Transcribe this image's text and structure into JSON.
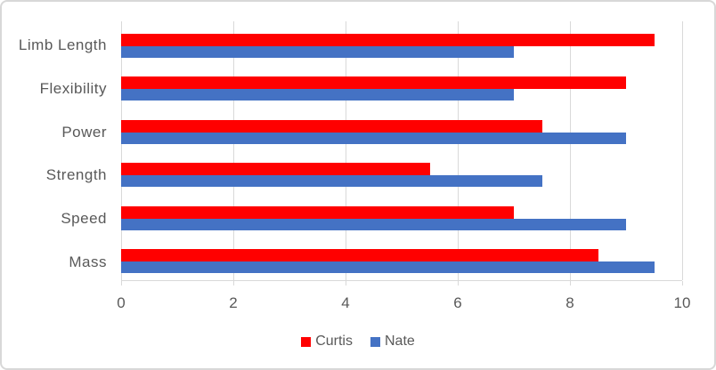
{
  "chart_data": {
    "type": "bar",
    "orientation": "horizontal",
    "categories": [
      "Limb Length",
      "Flexibility",
      "Power",
      "Strength",
      "Speed",
      "Mass"
    ],
    "series": [
      {
        "name": "Curtis",
        "color": "#ff0000",
        "values": [
          9.5,
          9,
          7.5,
          5.5,
          7,
          8.5
        ]
      },
      {
        "name": "Nate",
        "color": "#4472c4",
        "values": [
          7,
          7,
          9,
          7.5,
          9,
          9.5
        ]
      }
    ],
    "x_ticks": [
      "0",
      "2",
      "4",
      "6",
      "8",
      "10"
    ],
    "xlim": [
      0,
      10
    ],
    "grid": "vertical-only",
    "legend_position": "bottom-center"
  },
  "colors": {
    "gridline": "#d9d9d9",
    "axis_line": "#d9d9d9",
    "text": "#595959",
    "frame_border": "#d8d8d8",
    "background": "#ffffff"
  }
}
